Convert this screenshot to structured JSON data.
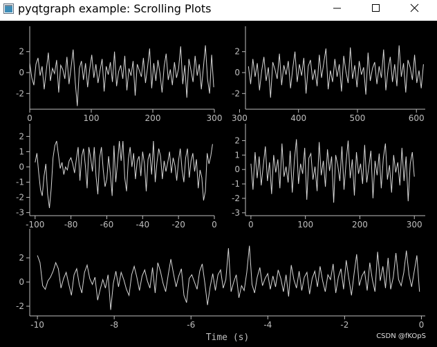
{
  "window": {
    "title": "pyqtgraph example: Scrolling Plots",
    "minimize_icon": "minimize-icon",
    "maximize_icon": "maximize-icon",
    "close_icon": "close-icon"
  },
  "watermark": "CSDN @fKOpS",
  "colors": {
    "background": "#000000",
    "curve": "#d8d8d8",
    "axis": "#bfbfbf"
  },
  "chart_data": [
    {
      "type": "line",
      "name": "plot-1",
      "xlim": [
        0,
        300
      ],
      "ylim": [
        -3.5,
        3.5
      ],
      "xticks": [
        0,
        100,
        200,
        300
      ],
      "yticks": [
        -2,
        0,
        2
      ],
      "xtick_labels": [
        "0",
        "100",
        "200",
        "300"
      ],
      "ytick_labels": [
        "-2",
        "0",
        "2"
      ],
      "series": [
        {
          "x_start": 0,
          "x_end": 299,
          "y": [
            0.9,
            -0.5,
            -1.2,
            0.8,
            1.4,
            -0.3,
            0.6,
            -1.6,
            0.2,
            1.9,
            -0.8,
            0.4,
            -0.1,
            1.2,
            -1.9,
            0.7,
            0.3,
            -0.6,
            1.5,
            -1.1,
            0.5,
            2.2,
            -0.9,
            -3.2,
            0.4,
            1.1,
            -0.7,
            0.9,
            -1.4,
            0.3,
            1.7,
            -0.5,
            0.8,
            -1.0,
            0.2,
            1.3,
            -1.8,
            0.6,
            -0.2,
            1.0,
            -0.9,
            2.0,
            -1.3,
            0.1,
            0.7,
            -0.6,
            1.6,
            -1.7,
            0.4,
            -0.3,
            1.1,
            -2.2,
            0.8,
            0.2,
            -0.4,
            1.4,
            -1.0,
            0.5,
            2.3,
            -1.5,
            0.9,
            -0.8,
            1.2,
            -0.1,
            -1.9,
            0.6,
            1.8,
            -0.7,
            0.3,
            -1.2,
            1.0,
            -0.5,
            0.4,
            2.5,
            -1.1,
            0.7,
            -2.4,
            1.3,
            0.2,
            -0.9,
            1.6,
            -0.3,
            0.8,
            -1.6,
            0.5,
            2.6,
            -0.6,
            -2.0,
            1.7,
            -1.4
          ]
        }
      ]
    },
    {
      "type": "line",
      "name": "plot-2",
      "xlim": [
        310,
        615
      ],
      "ylim": [
        -3.5,
        3.5
      ],
      "xticks": [
        300,
        400,
        500,
        600
      ],
      "yticks": [
        -2,
        0,
        2
      ],
      "xtick_labels": [
        "300",
        "400",
        "500",
        "600"
      ],
      "ytick_labels": [
        "-2",
        "0",
        "2"
      ],
      "series": [
        {
          "x_start": 315,
          "x_end": 612,
          "y": [
            0.6,
            -1.1,
            1.3,
            -0.4,
            0.9,
            -1.7,
            0.2,
            1.5,
            -0.8,
            0.5,
            -2.4,
            1.0,
            0.3,
            -0.6,
            1.8,
            -1.2,
            0.7,
            -0.2,
            1.1,
            -1.5,
            0.4,
            2.0,
            -0.9,
            0.8,
            -0.3,
            1.4,
            -2.0,
            0.6,
            1.2,
            -0.7,
            0.3,
            -1.3,
            1.7,
            -0.5,
            0.9,
            2.3,
            -1.6,
            0.2,
            -0.9,
            1.3,
            -0.4,
            0.8,
            -1.8,
            1.6,
            0.1,
            -1.0,
            2.4,
            -0.6,
            0.7,
            -1.4,
            1.1,
            -0.2,
            0.5,
            -2.1,
            1.9,
            -0.8,
            0.4,
            1.0,
            -1.1,
            0.6,
            -0.5,
            2.2,
            -1.7,
            0.3,
            1.5,
            -0.9,
            0.8,
            -1.3,
            2.6,
            -0.4,
            0.9,
            -1.9,
            1.2,
            0.5,
            -0.7,
            1.7,
            -1.0,
            0.2,
            -1.5,
            0.8
          ]
        }
      ]
    },
    {
      "type": "line",
      "name": "plot-3",
      "xlim": [
        -103,
        0
      ],
      "ylim": [
        -3.2,
        2.2
      ],
      "xticks": [
        -100,
        -80,
        -60,
        -40,
        -20,
        0
      ],
      "yticks": [
        -3,
        -2,
        -1,
        0,
        1,
        2
      ],
      "xtick_labels": [
        "-100",
        "-80",
        "-60",
        "-40",
        "-20",
        "0"
      ],
      "ytick_labels": [
        "-3",
        "-2",
        "-1",
        "0",
        "1",
        "2"
      ],
      "series": [
        {
          "x_start": -100,
          "x_end": -1,
          "y": [
            0.3,
            0.9,
            -0.4,
            -1.5,
            -1.9,
            -0.6,
            0.2,
            -1.8,
            -2.7,
            -1.4,
            0.6,
            1.4,
            1.7,
            0.8,
            -0.1,
            0.3,
            -0.5,
            0.0,
            -0.2,
            0.4,
            0.6,
            0.2,
            -0.4,
            0.5,
            1.3,
            -0.9,
            0.7,
            1.2,
            0.1,
            -1.4,
            1.3,
            0.6,
            -0.3,
            1.3,
            -0.6,
            -1.8,
            0.6,
            1.3,
            -0.2,
            -1.3,
            -0.8,
            0.7,
            -0.5,
            -1.9,
            1.4,
            -1.0,
            0.3,
            1.7,
            0.4,
            1.7,
            -0.7,
            -1.6,
            0.5,
            1.3,
            0.0,
            0.9,
            -0.8,
            0.4,
            0.7,
            -0.6,
            1.0,
            0.2,
            -1.6,
            0.5,
            0.9,
            -0.5,
            1.7,
            -1.0,
            0.3,
            1.2,
            0.7,
            -0.8,
            0.4,
            -0.3,
            0.3,
            1.0,
            -0.4,
            0.6,
            0.1,
            -0.9,
            0.4,
            1.2,
            -0.2,
            -1.0,
            0.6,
            1.2,
            -0.7,
            0.4,
            0.9,
            -0.3,
            0.5,
            -1.4,
            -0.2,
            -0.7,
            -2.2,
            -1.6,
            0.9,
            0.2,
            0.7,
            1.5
          ]
        }
      ]
    },
    {
      "type": "line",
      "name": "plot-4",
      "xlim": [
        -10,
        320
      ],
      "ylim": [
        -3.2,
        2.5
      ],
      "xticks": [
        0,
        100,
        200,
        300
      ],
      "yticks": [
        -3,
        -2,
        -1,
        0,
        1,
        2
      ],
      "xtick_labels": [
        "0",
        "100",
        "200",
        "300"
      ],
      "ytick_labels": [
        "-3",
        "-2",
        "-1",
        "0",
        "1",
        "2"
      ],
      "series": [
        {
          "x_start": 0,
          "x_end": 300,
          "y": [
            0.4,
            -1.4,
            1.2,
            -0.6,
            0.9,
            -1.1,
            0.3,
            1.6,
            -0.8,
            0.5,
            -1.7,
            1.0,
            -0.2,
            0.7,
            -1.3,
            1.8,
            -0.5,
            0.2,
            -0.9,
            1.3,
            -1.6,
            0.6,
            2.1,
            -1.0,
            0.4,
            -0.3,
            1.5,
            -2.1,
            0.8,
            1.1,
            -0.7,
            0.2,
            -1.5,
            1.9,
            -0.4,
            0.6,
            -1.2,
            1.4,
            -0.1,
            0.9,
            -2.3,
            1.0,
            0.3,
            -0.8,
            1.6,
            -1.4,
            0.5,
            2.0,
            -0.6,
            0.7,
            -1.8,
            1.2,
            -0.3,
            0.4,
            -1.0,
            1.7,
            -0.9,
            0.2,
            1.3,
            -2.0,
            0.6,
            -0.4,
            1.1,
            -1.3,
            0.8,
            1.8,
            -0.7,
            0.3,
            -1.6,
            1.0,
            -0.2,
            0.5,
            -1.1,
            1.5,
            -0.8,
            0.9,
            -2.2,
            0.4,
            1.2,
            -0.5
          ]
        }
      ]
    },
    {
      "type": "line",
      "name": "plot-5",
      "xlim": [
        -10.2,
        0.1
      ],
      "ylim": [
        -2.8,
        3.6
      ],
      "xlabel": "Time (s)",
      "xticks": [
        -10,
        -8,
        -6,
        -4,
        -2,
        0
      ],
      "yticks": [
        -2,
        0,
        2
      ],
      "xtick_labels": [
        "-10",
        "-8",
        "-6",
        "-4",
        "-2",
        "0"
      ],
      "ytick_labels": [
        "-2",
        "0",
        "2"
      ],
      "series": [
        {
          "x_start": -10.0,
          "x_end": -0.05,
          "y": [
            2.2,
            1.6,
            -0.3,
            -0.6,
            0.1,
            0.4,
            0.9,
            1.6,
            1.1,
            -0.5,
            0.3,
            0.8,
            -0.2,
            -1.1,
            0.6,
            1.1,
            -0.2,
            -0.9,
            0.8,
            1.4,
            0.3,
            -0.2,
            0.4,
            -1.5,
            -0.6,
            0.2,
            -0.5,
            0.6,
            -2.3,
            -0.1,
            0.9,
            -0.4,
            0.8,
            0.2,
            -0.6,
            -1.1,
            0.6,
            1.3,
            0.4,
            -0.7,
            0.5,
            1.0,
            0.1,
            -0.5,
            1.2,
            -0.9,
            1.6,
            0.9,
            -0.1,
            -0.8,
            0.6,
            1.9,
            0.7,
            -0.4,
            0.5,
            1.1,
            -1.1,
            -1.7,
            0.3,
            0.6,
            0.0,
            -0.6,
            0.9,
            1.5,
            -0.1,
            -1.9,
            -0.4,
            0.7,
            -0.7,
            0.6,
            1.0,
            -0.5,
            0.2,
            2.8,
            -0.8,
            0.0,
            0.6,
            -1.3,
            -0.3,
            -0.7,
            0.8,
            3.0,
            -0.2,
            -0.9,
            0.4,
            1.2,
            -0.3,
            0.3,
            0.7,
            -0.6,
            0.5,
            -0.4,
            1.0,
            0.3,
            -0.8,
            0.6,
            -1.2,
            1.4,
            0.2,
            -0.5,
            0.9,
            -0.7,
            0.4,
            0.8,
            -1.0,
            0.3,
            0.9,
            -0.4,
            1.3,
            0.1,
            -0.8,
            0.6,
            0.2,
            1.5,
            -0.9,
            0.4,
            1.1,
            -0.6,
            1.8,
            0.3,
            -1.1,
            0.7,
            2.3,
            -0.3,
            0.5,
            0.9,
            -0.7,
            1.6,
            0.2,
            -0.8,
            2.5,
            0.1,
            1.3,
            -0.5,
            2.0,
            -0.6,
            0.4,
            2.4,
            0.2,
            -0.3,
            0.8,
            2.6,
            0.6,
            -0.4,
            0.9,
            2.2,
            -0.8
          ]
        }
      ]
    }
  ]
}
